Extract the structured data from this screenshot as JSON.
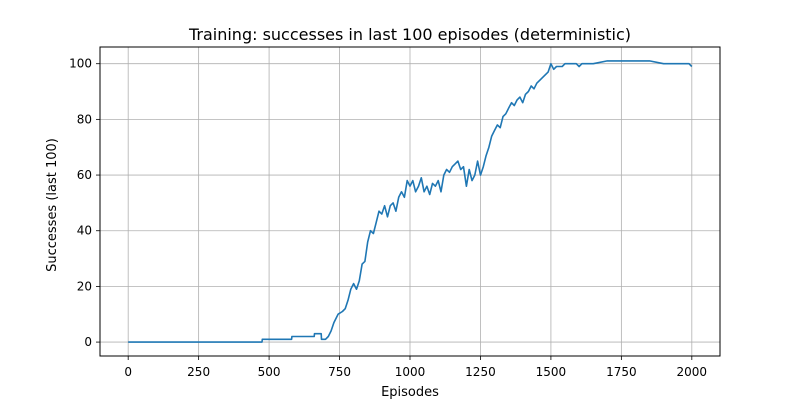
{
  "chart_data": {
    "type": "line",
    "title": "Training: successes in last 100 episodes (deterministic)",
    "xlabel": "Episodes",
    "ylabel": "Successes (last 100)",
    "xlim": [
      -100,
      2100
    ],
    "ylim": [
      -5,
      106
    ],
    "xticks": [
      0,
      250,
      500,
      750,
      1000,
      1250,
      1500,
      1750,
      2000
    ],
    "yticks": [
      0,
      20,
      40,
      60,
      80,
      100
    ],
    "grid": true,
    "line_color": "#1f77b4",
    "series": [
      {
        "x": [
          0,
          475,
          476,
          580,
          581,
          660,
          661,
          685,
          686,
          700,
          710,
          720,
          730,
          740,
          745,
          760,
          770,
          780,
          790,
          800,
          810,
          820,
          830,
          840,
          850,
          860,
          870,
          880,
          890,
          900,
          910,
          920,
          930,
          940,
          950,
          960,
          970,
          980,
          990,
          1000,
          1010,
          1020,
          1030,
          1040,
          1050,
          1060,
          1070,
          1080,
          1090,
          1100,
          1110,
          1120,
          1130,
          1140,
          1150,
          1160,
          1170,
          1180,
          1190,
          1200,
          1210,
          1220,
          1230,
          1240,
          1250,
          1260,
          1270,
          1280,
          1290,
          1300,
          1310,
          1320,
          1330,
          1340,
          1350,
          1360,
          1370,
          1380,
          1390,
          1400,
          1410,
          1420,
          1430,
          1440,
          1450,
          1460,
          1470,
          1480,
          1490,
          1500,
          1510,
          1520,
          1530,
          1540,
          1550,
          1560,
          1590,
          1600,
          1610,
          1650,
          1700,
          1750,
          1800,
          1850,
          1900,
          1910,
          1990,
          2000
        ],
        "y": [
          0,
          0,
          1,
          1,
          2,
          2,
          3,
          3,
          1,
          1,
          2,
          4,
          7,
          9,
          10,
          11,
          12,
          15,
          19,
          21,
          19,
          22,
          28,
          29,
          36,
          40,
          39,
          43,
          47,
          46,
          49,
          45,
          49,
          50,
          47,
          52,
          54,
          52,
          58,
          56,
          58,
          54,
          56,
          59,
          54,
          56,
          53,
          57,
          56,
          58,
          54,
          60,
          62,
          61,
          63,
          64,
          65,
          62,
          63,
          56,
          62,
          58,
          60,
          65,
          60,
          63,
          67,
          70,
          74,
          76,
          78,
          77,
          81,
          82,
          84,
          86,
          85,
          87,
          88,
          86,
          89,
          90,
          92,
          91,
          93,
          94,
          95,
          96,
          97,
          100,
          98,
          99,
          99,
          99,
          100,
          100,
          100,
          99,
          100,
          100,
          101,
          101,
          101,
          101,
          100,
          100,
          100,
          99
        ]
      }
    ]
  }
}
